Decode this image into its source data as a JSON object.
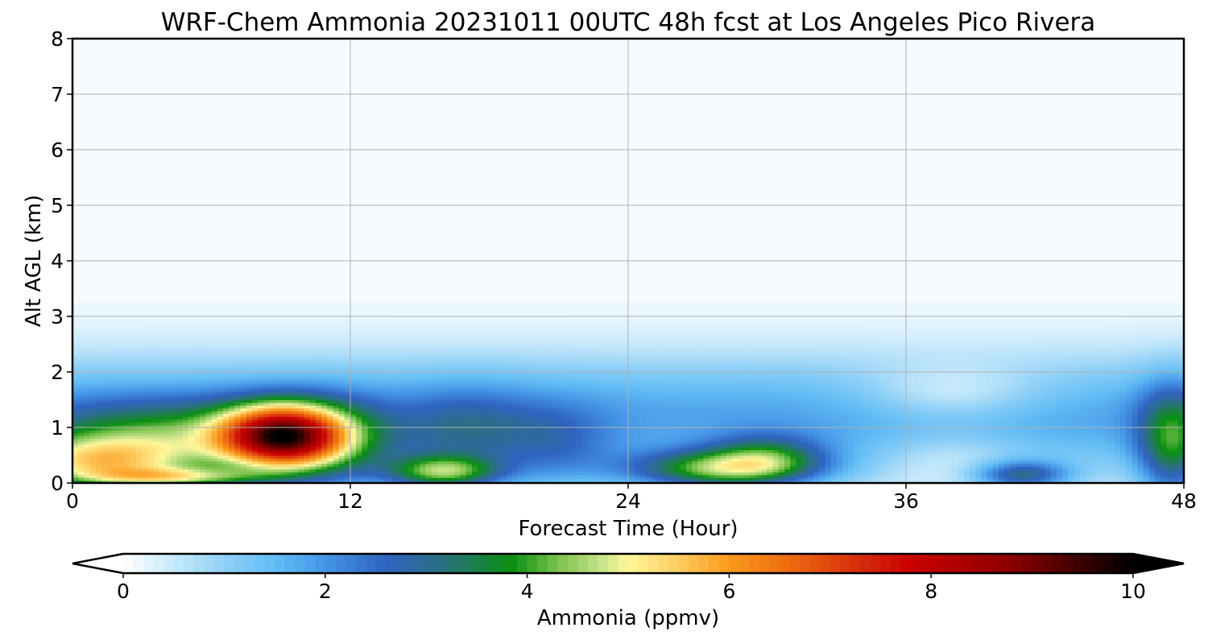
{
  "chart_data": {
    "type": "heatmap",
    "title": "WRF-Chem Ammonia  20231011 00UTC 48h fcst at Los Angeles Pico Rivera",
    "xlabel": "Forecast Time (Hour)",
    "ylabel": "Alt AGL (km)",
    "xlim": [
      0,
      48
    ],
    "ylim": [
      0,
      8
    ],
    "x_ticks": [
      0,
      12,
      24,
      36,
      48
    ],
    "y_ticks": [
      0,
      1,
      2,
      3,
      4,
      5,
      6,
      7,
      8
    ],
    "grid": true,
    "colorbar": {
      "label": "Ammonia  (ppmv)",
      "range": [
        0,
        10
      ],
      "ticks": [
        0,
        2,
        4,
        6,
        8,
        10
      ],
      "extend": "both",
      "stops": [
        {
          "v": 0,
          "c": "#ffffff"
        },
        {
          "v": 0.5,
          "c": "#c7e9fb"
        },
        {
          "v": 1.0,
          "c": "#8fd0f7"
        },
        {
          "v": 1.5,
          "c": "#63bdf5"
        },
        {
          "v": 2.0,
          "c": "#4596e6"
        },
        {
          "v": 2.6,
          "c": "#2f63c0"
        },
        {
          "v": 3.1,
          "c": "#2c6e8a"
        },
        {
          "v": 3.5,
          "c": "#1c7f4a"
        },
        {
          "v": 3.85,
          "c": "#0a8f12"
        },
        {
          "v": 4.3,
          "c": "#7bc24c"
        },
        {
          "v": 4.75,
          "c": "#c9e48c"
        },
        {
          "v": 5.0,
          "c": "#fff79a"
        },
        {
          "v": 5.5,
          "c": "#fdcc62"
        },
        {
          "v": 6.0,
          "c": "#f99a1c"
        },
        {
          "v": 6.6,
          "c": "#ee6a10"
        },
        {
          "v": 7.3,
          "c": "#d42c0c"
        },
        {
          "v": 7.8,
          "c": "#cc0000"
        },
        {
          "v": 8.8,
          "c": "#8a0000"
        },
        {
          "v": 10.0,
          "c": "#000000"
        }
      ]
    },
    "background_value": 0.1,
    "field_features": [
      {
        "kind": "band",
        "center_hour": 24,
        "width_hours": 200,
        "center_km": 1.2,
        "height_km": 1.1,
        "value": 1.7
      },
      {
        "kind": "blob",
        "center_hour": 4,
        "center_km": 0.8,
        "width_hours": 6,
        "height_km": 0.7,
        "value": 2.4
      },
      {
        "kind": "blob",
        "center_hour": 1,
        "center_km": 0.35,
        "width_hours": 4,
        "height_km": 0.45,
        "value": 3.2
      },
      {
        "kind": "blob",
        "center_hour": 9,
        "center_km": 0.85,
        "width_hours": 2.6,
        "height_km": 0.55,
        "value": 6.2
      },
      {
        "kind": "blob",
        "center_hour": 11,
        "center_km": 0.7,
        "width_hours": 3,
        "height_km": 0.8,
        "value": 1.8
      },
      {
        "kind": "blob",
        "center_hour": 4.5,
        "center_km": 0.1,
        "width_hours": 4,
        "height_km": 0.18,
        "value": 2.6
      },
      {
        "kind": "blob",
        "center_hour": 16,
        "center_km": 0.2,
        "width_hours": 2.5,
        "height_km": 0.3,
        "value": 3.2
      },
      {
        "kind": "blob",
        "center_hour": 17,
        "center_km": 0.9,
        "width_hours": 3,
        "height_km": 0.8,
        "value": 1.3
      },
      {
        "kind": "blob",
        "center_hour": 21,
        "center_km": 0.6,
        "width_hours": 2.5,
        "height_km": 0.8,
        "value": 1.0
      },
      {
        "kind": "blob",
        "center_hour": 28,
        "center_km": 0.25,
        "width_hours": 4,
        "height_km": 0.35,
        "value": 3.4
      },
      {
        "kind": "blob",
        "center_hour": 30,
        "center_km": 0.5,
        "width_hours": 2.5,
        "height_km": 0.4,
        "value": 1.8
      },
      {
        "kind": "blob",
        "center_hour": 38,
        "center_km": 1.6,
        "width_hours": 4,
        "height_km": 0.5,
        "value": -1.0
      },
      {
        "kind": "blob",
        "center_hour": 38,
        "center_km": 0.5,
        "width_hours": 3,
        "height_km": 0.5,
        "value": -0.6
      },
      {
        "kind": "blob",
        "center_hour": 41,
        "center_km": 0.15,
        "width_hours": 2,
        "height_km": 0.25,
        "value": 2.4
      },
      {
        "kind": "blob",
        "center_hour": 47.5,
        "center_km": 0.7,
        "width_hours": 1.5,
        "height_km": 1.0,
        "value": 2.6
      }
    ]
  }
}
